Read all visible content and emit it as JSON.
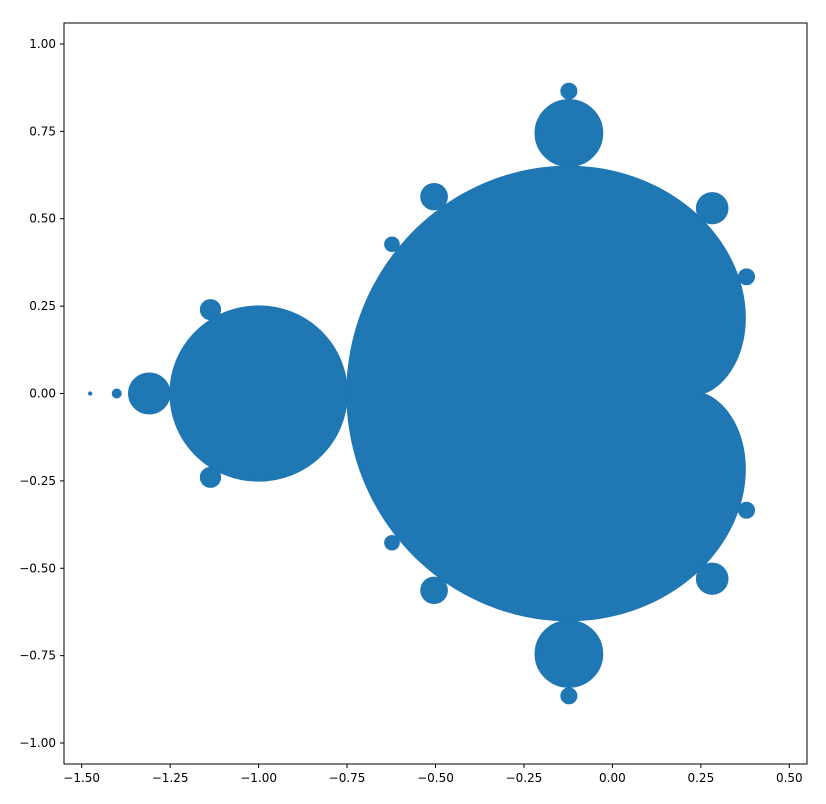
{
  "chart_data": {
    "type": "scatter",
    "title": "",
    "xlabel": "",
    "ylabel": "",
    "xlim": [
      -1.55,
      0.55
    ],
    "ylim": [
      -1.06,
      1.06
    ],
    "x_ticks": [
      -1.5,
      -1.25,
      -1.0,
      -0.75,
      -0.5,
      -0.25,
      0.0,
      0.25,
      0.5
    ],
    "x_tick_labels": [
      "−1.50",
      "−1.25",
      "−1.00",
      "−0.75",
      "−0.50",
      "−0.25",
      "0.00",
      "0.25",
      "0.50"
    ],
    "y_ticks": [
      1.0,
      0.75,
      0.5,
      0.25,
      0.0,
      -0.25,
      -0.5,
      -0.75,
      -1.0
    ],
    "y_tick_labels": [
      "1.00",
      "0.75",
      "0.50",
      "0.25",
      "0.00",
      "−0.25",
      "−0.50",
      "−0.75",
      "−1.00"
    ],
    "grid": false,
    "legend": "none",
    "series": [
      {
        "color": "#1f77b4",
        "marker": "point",
        "description_of_points": "Mandelbrot set membership",
        "components": [
          {
            "shape": "cardioid",
            "cx": 0.25,
            "cy": 0.0,
            "a": 0.5
          },
          {
            "shape": "disk",
            "cx": -1.0,
            "cy": 0.0,
            "r": 0.25
          },
          {
            "shape": "disk",
            "cx": -1.309,
            "cy": 0.0,
            "r": 0.058
          },
          {
            "shape": "disk",
            "cx": -0.123,
            "cy": 0.745,
            "r": 0.095
          },
          {
            "shape": "disk",
            "cx": -0.123,
            "cy": -0.745,
            "r": 0.095
          },
          {
            "shape": "disk",
            "cx": 0.282,
            "cy": 0.53,
            "r": 0.044
          },
          {
            "shape": "disk",
            "cx": 0.282,
            "cy": -0.53,
            "r": 0.044
          },
          {
            "shape": "disk",
            "cx": -0.504,
            "cy": 0.563,
            "r": 0.037
          },
          {
            "shape": "disk",
            "cx": -0.504,
            "cy": -0.563,
            "r": 0.037
          },
          {
            "shape": "disk",
            "cx": 0.379,
            "cy": 0.334,
            "r": 0.022
          },
          {
            "shape": "disk",
            "cx": 0.379,
            "cy": -0.334,
            "r": 0.022
          },
          {
            "shape": "disk",
            "cx": -0.623,
            "cy": 0.427,
            "r": 0.02
          },
          {
            "shape": "disk",
            "cx": -0.623,
            "cy": -0.427,
            "r": 0.02
          },
          {
            "shape": "disk",
            "cx": -1.136,
            "cy": 0.24,
            "r": 0.028
          },
          {
            "shape": "disk",
            "cx": -1.136,
            "cy": -0.24,
            "r": 0.028
          },
          {
            "shape": "disk",
            "cx": -0.123,
            "cy": 0.865,
            "r": 0.022
          },
          {
            "shape": "disk",
            "cx": -0.123,
            "cy": -0.865,
            "r": 0.022
          },
          {
            "shape": "disk",
            "cx": -1.401,
            "cy": 0.0,
            "r": 0.012
          },
          {
            "shape": "disk",
            "cx": -1.476,
            "cy": 0.0,
            "r": 0.004
          }
        ]
      }
    ]
  }
}
